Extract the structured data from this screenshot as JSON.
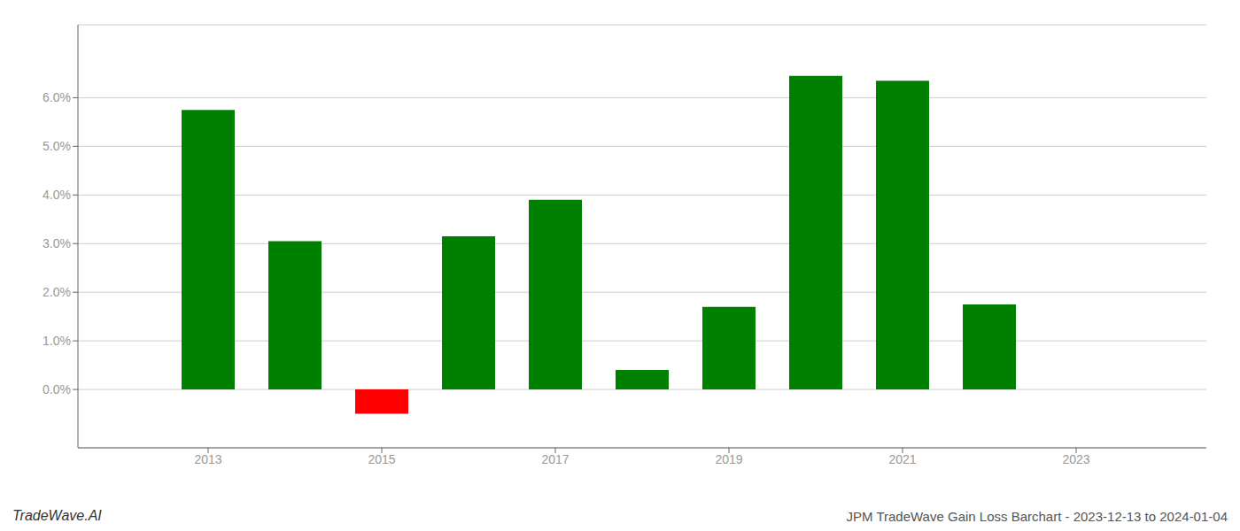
{
  "chart_data": {
    "type": "bar",
    "title": "JPM TradeWave Gain Loss Barchart - 2023-12-13 to 2024-01-04",
    "annotations": [
      "TradeWave.AI"
    ],
    "x": [
      2013,
      2014,
      2015,
      2016,
      2017,
      2018,
      2019,
      2020,
      2021,
      2022
    ],
    "values": [
      0.0575,
      0.0305,
      -0.005,
      0.0315,
      0.039,
      0.004,
      0.017,
      0.0645,
      0.0635,
      0.0175
    ],
    "colors": [
      "#008000",
      "#008000",
      "#ff0000",
      "#008000",
      "#008000",
      "#008000",
      "#008000",
      "#008000",
      "#008000",
      "#008000"
    ],
    "xlim": [
      2011.5,
      2024.5
    ],
    "xticks": [
      2013,
      2015,
      2017,
      2019,
      2021,
      2023
    ],
    "ylim": [
      -0.012,
      0.075
    ],
    "yticks": [
      {
        "value": 0.0,
        "label": "0.0%"
      },
      {
        "value": 0.01,
        "label": "1.0%"
      },
      {
        "value": 0.02,
        "label": "2.0%"
      },
      {
        "value": 0.03,
        "label": "3.0%"
      },
      {
        "value": 0.04,
        "label": "4.0%"
      },
      {
        "value": 0.05,
        "label": "5.0%"
      },
      {
        "value": 0.06,
        "label": "6.0%"
      }
    ],
    "grid": "y"
  }
}
